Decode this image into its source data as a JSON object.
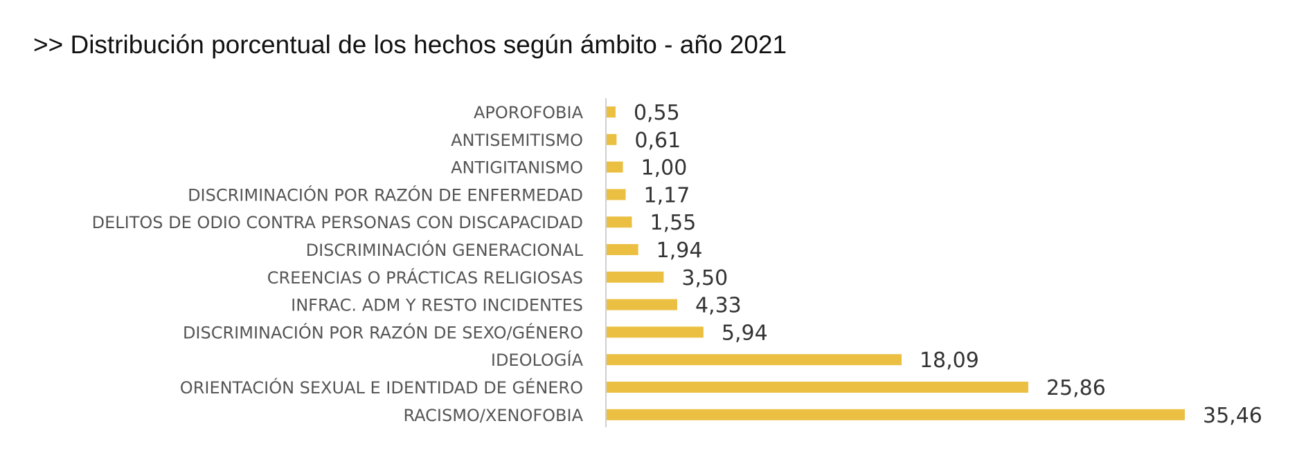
{
  "title": ">> Distribución porcentual de los hechos según ámbito - año 2021",
  "chart_data": {
    "type": "bar",
    "orientation": "horizontal",
    "categories": [
      "APOROFOBIA",
      "ANTISEMITISMO",
      "ANTIGITANISMO",
      "DISCRIMINACIÓN POR RAZÓN DE ENFERMEDAD",
      "DELITOS DE ODIO CONTRA PERSONAS CON DISCAPACIDAD",
      "DISCRIMINACIÓN GENERACIONAL",
      "CREENCIAS O PRÁCTICAS RELIGIOSAS",
      "INFRAC. ADM Y RESTO INCIDENTES",
      "DISCRIMINACIÓN POR RAZÓN DE SEXO/GÉNERO",
      "IDEOLOGÍA",
      "ORIENTACIÓN SEXUAL E IDENTIDAD DE GÉNERO",
      "RACISMO/XENOFOBIA"
    ],
    "values": [
      0.55,
      0.61,
      1.0,
      1.17,
      1.55,
      1.94,
      3.5,
      4.33,
      5.94,
      18.09,
      25.86,
      35.46
    ],
    "value_labels": [
      "0,55",
      "0,61",
      "1,00",
      "1,17",
      "1,55",
      "1,94",
      "3,50",
      "4,33",
      "5,94",
      "18,09",
      "25,86",
      "35,46"
    ],
    "xlim": [
      0,
      35.46
    ],
    "bar_color": "#EBC042",
    "axis_color": "#BFBFBF",
    "grid": false,
    "legend": "none"
  }
}
